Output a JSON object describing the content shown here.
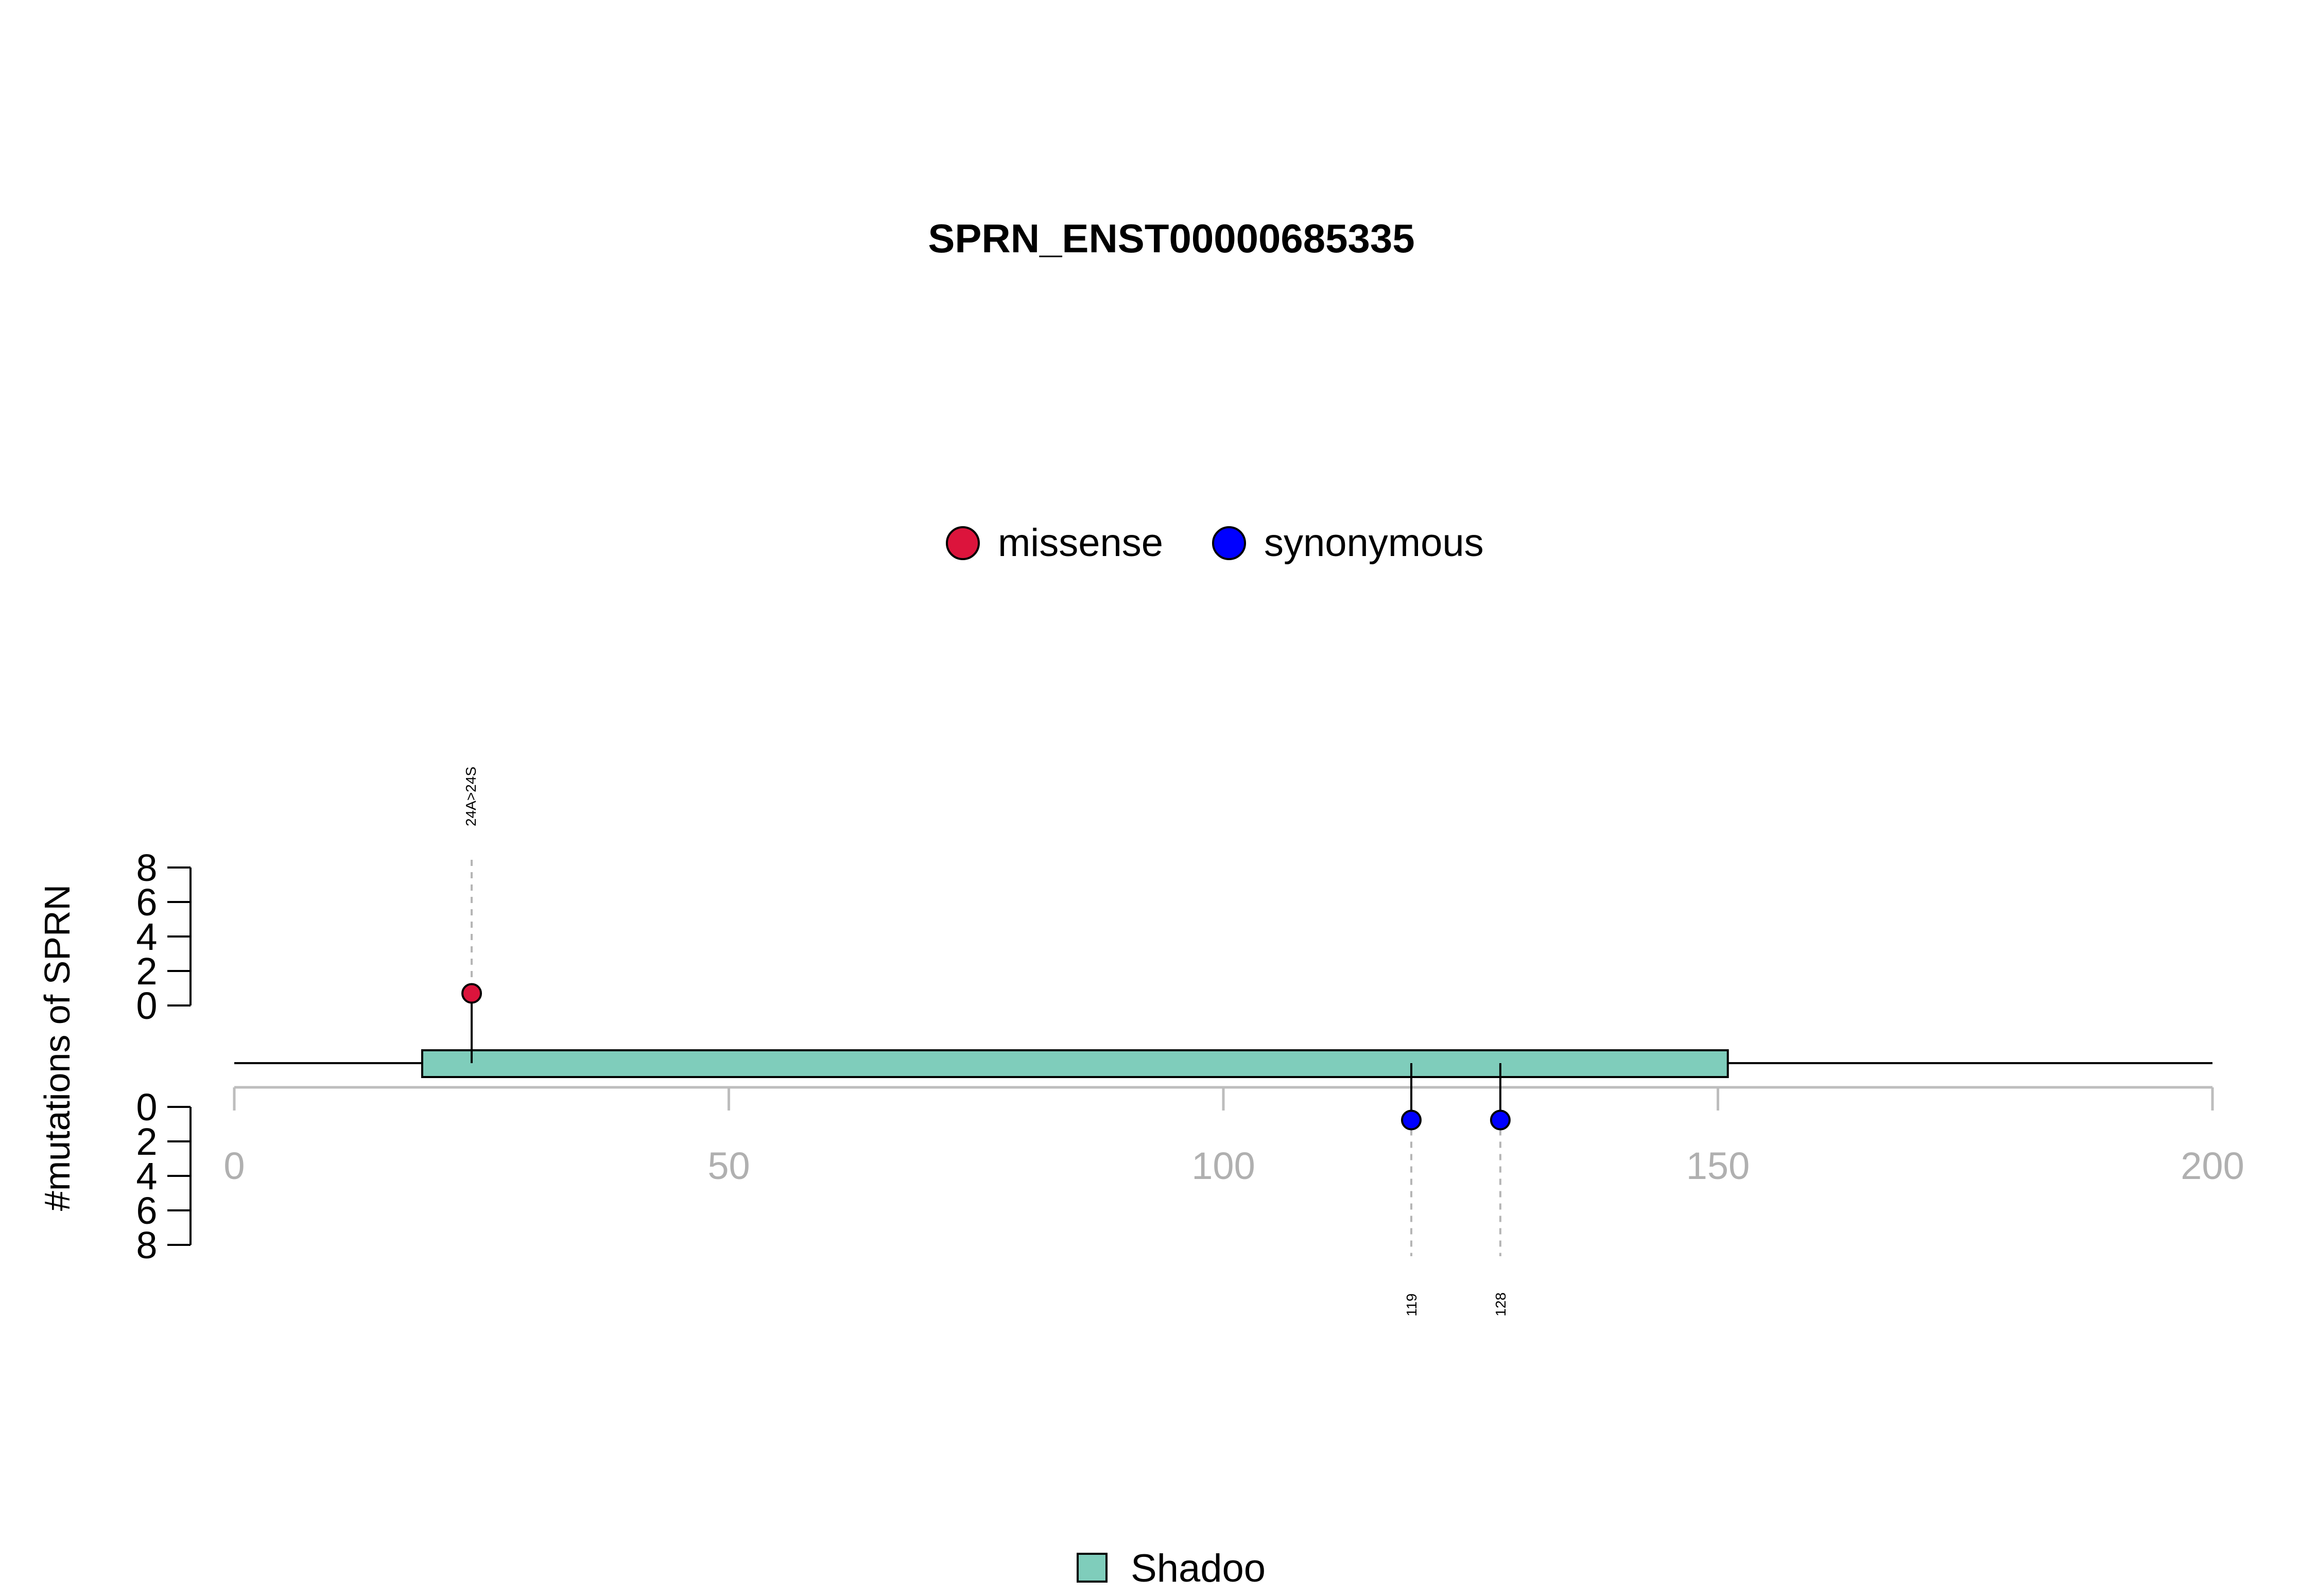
{
  "chart_data": {
    "type": "lollipop",
    "title": "SPRN_ENST00000685335",
    "ylabel": "#mutations of SPRN",
    "xlim": [
      0,
      200
    ],
    "x_ticks": [
      0,
      50,
      100,
      150,
      200
    ],
    "x_tick_labels": [
      "0",
      "50",
      "100",
      "150",
      "200"
    ],
    "y_ticks": [
      0,
      2,
      4,
      6,
      8
    ],
    "y_tick_labels": [
      "0",
      "2",
      "4",
      "6",
      "8"
    ],
    "ylim": [
      0,
      8
    ],
    "protein_length": 200,
    "domains": [
      {
        "name": "Shadoo",
        "start": 19,
        "end": 151,
        "color": "#7fcdbb"
      }
    ],
    "legend": {
      "top": [
        {
          "label": "missense",
          "color": "#dc143c"
        },
        {
          "label": "synonymous",
          "color": "#0000ff"
        }
      ],
      "bottom": [
        {
          "label": "Shadoo",
          "color": "#7fcdbb"
        }
      ]
    },
    "mutations": [
      {
        "position": 24,
        "count": 1,
        "type": "missense",
        "label": "24A>24S",
        "side": "top",
        "color": "#dc143c"
      },
      {
        "position": 119,
        "count": 1,
        "type": "synonymous",
        "label": "119",
        "side": "bottom",
        "color": "#0000ff"
      },
      {
        "position": 128,
        "count": 1,
        "type": "synonymous",
        "label": "128",
        "side": "bottom",
        "color": "#0000ff"
      }
    ]
  }
}
